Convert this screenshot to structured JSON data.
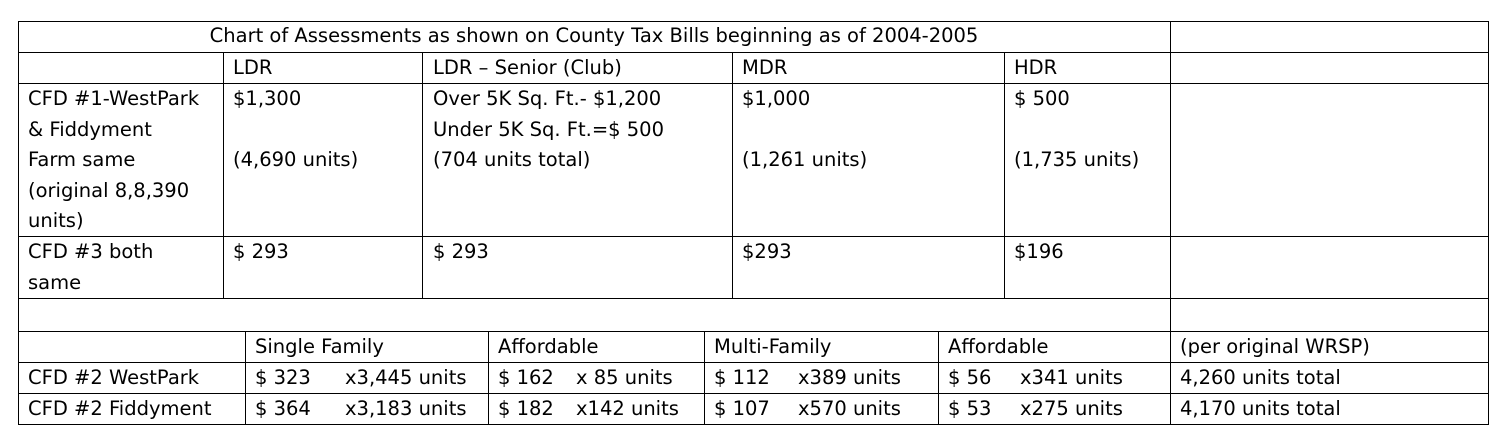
{
  "title": "Chart of Assessments as shown on County Tax Bills beginning as of 2004-2005",
  "top_table": {
    "headers": [
      "LDR",
      "LDR – Senior (Club)",
      "MDR",
      "HDR"
    ],
    "rows": [
      {
        "label": "CFD #1-WestPark\n& Fiddyment\nFarm same\n(original 8,8,390\nunits)",
        "cells": [
          "$1,300\n\n(4,690 units)",
          "Over 5K Sq. Ft.- $1,200\nUnder 5K Sq. Ft.=$  500\n(704 units total)",
          "$1,000\n\n(1,261 units)",
          "$  500\n\n(1,735 units)"
        ]
      },
      {
        "label": " CFD #3 both\nsame",
        "cells": [
          "$ 293",
          "$ 293",
          "$293",
          "$196"
        ]
      }
    ]
  },
  "bottom_table": {
    "headers": [
      "Single Family",
      "Affordable",
      "Multi-Family",
      "Affordable",
      "(per original WRSP)"
    ],
    "rows": [
      {
        "label": "CFD #2 WestPark",
        "cells": [
          {
            "amount": "$ 323",
            "units": "x3,445 units"
          },
          {
            "amount": "$ 162",
            "units": "x 85 units"
          },
          {
            "amount": "$ 112",
            "units": "x389 units"
          },
          {
            "amount": "$ 56",
            "units": "x341 units"
          }
        ],
        "total": " 4,260 units total"
      },
      {
        "label": "CFD #2 Fiddyment",
        "cells": [
          {
            "amount": "$ 364",
            "units": "x3,183 units"
          },
          {
            "amount": "$ 182",
            "units": "x142 units"
          },
          {
            "amount": "$ 107",
            "units": "x570 units"
          },
          {
            "amount": "$ 53",
            "units": "x275 units"
          }
        ],
        "total": " 4,170 units total"
      }
    ]
  }
}
